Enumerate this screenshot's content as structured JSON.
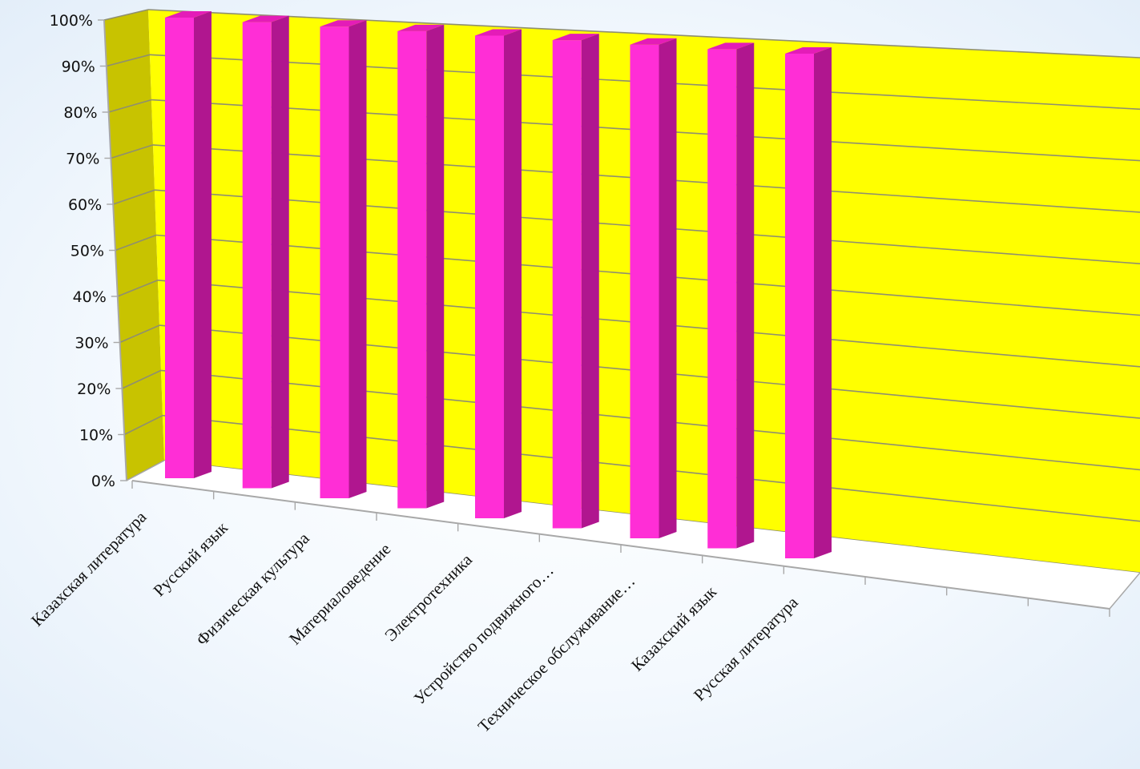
{
  "chart_data": {
    "type": "bar",
    "title": "",
    "xlabel": "",
    "ylabel": "",
    "categories": [
      "Казахская литература",
      "Русский язык",
      "Физическая культура",
      "Материаловедение",
      "Электротехника",
      "Устройство подвижного…",
      "Техническое обслуживание…",
      "Казахский язык",
      "Русская литература"
    ],
    "values": [
      100,
      100,
      100,
      100,
      100,
      100,
      100,
      100,
      100
    ],
    "ylim": [
      0,
      100
    ],
    "yticks": [
      "0%",
      "10%",
      "20%",
      "30%",
      "40%",
      "50%",
      "60%",
      "70%",
      "80%",
      "90%",
      "100%"
    ],
    "grid": true,
    "legend": "none",
    "colors": {
      "bar_front": "#ff2ed6",
      "bar_side": "#b0168f",
      "bar_top": "#e41cb8",
      "back_wall": "#ffff00",
      "side_wall": "#c8c300",
      "floor": "#ffffff",
      "grid": "#8f8f70",
      "axis": "#a8a8a8"
    }
  }
}
